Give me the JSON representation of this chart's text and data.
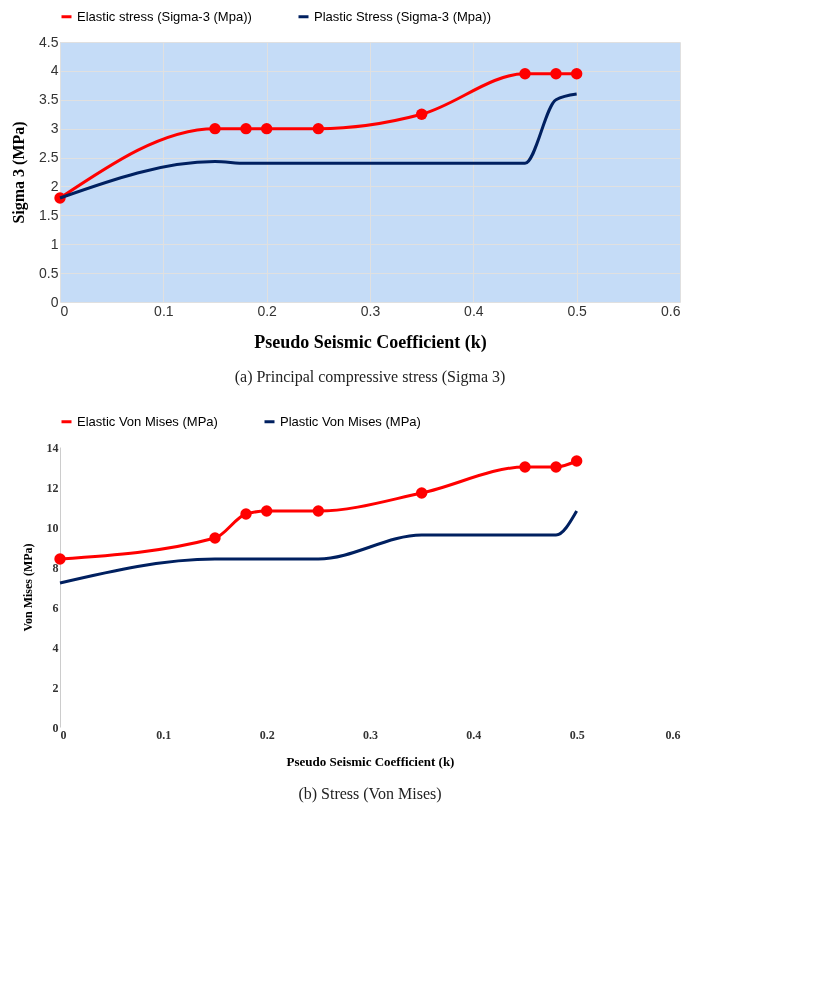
{
  "chart_data": [
    {
      "type": "line",
      "xlabel": "Pseudo Seismic Coefficient (k)",
      "ylabel": "Sigma 3 (MPa)",
      "xlim": [
        0,
        0.6
      ],
      "xticks": [
        0,
        0.1,
        0.2,
        0.3,
        0.4,
        0.5,
        0.6
      ],
      "ylim": [
        0,
        4.5
      ],
      "yticks": [
        0,
        0.5,
        1,
        1.5,
        2,
        2.5,
        3,
        3.5,
        4,
        4.5
      ],
      "grid": true,
      "legend": "top",
      "annotations": [
        "(a) Principal compressive stress (Sigma 3)"
      ],
      "x": [
        0,
        0.15,
        0.18,
        0.2,
        0.25,
        0.35,
        0.45,
        0.48,
        0.5
      ],
      "series": [
        {
          "name": "Elastic stress (Sigma-3 (Mpa))",
          "color": "#ff0000",
          "marker": "circle",
          "values": [
            1.8,
            3,
            3,
            3,
            3,
            3.25,
            3.95,
            3.95,
            3.95
          ]
        },
        {
          "name": "Plastic Stress (Sigma-3 (Mpa))",
          "color": "#002060",
          "marker": "none",
          "values": [
            1.8,
            2.43,
            2.4,
            2.4,
            2.4,
            2.4,
            2.4,
            3.5,
            3.6
          ]
        }
      ]
    },
    {
      "type": "line",
      "xlabel": "Pseudo Seismic Coefficient (k)",
      "ylabel": "Von Mises (MPa)",
      "xlim": [
        0,
        0.6
      ],
      "xticks": [
        0,
        0.1,
        0.2,
        0.3,
        0.4,
        0.5,
        0.6
      ],
      "ylim": [
        0,
        14
      ],
      "yticks": [
        0,
        2,
        4,
        6,
        8,
        10,
        12,
        14
      ],
      "legend": "top",
      "annotations": [
        "(b) Stress (Von Mises)"
      ],
      "x": [
        0,
        0.15,
        0.18,
        0.2,
        0.25,
        0.35,
        0.45,
        0.48,
        0.5
      ],
      "series": [
        {
          "name": "Elastic Von Mises (MPa)",
          "color": "#ff0000",
          "marker": "circle",
          "values": [
            8.4,
            9.45,
            10.65,
            10.8,
            10.8,
            11.7,
            13.0,
            13.0,
            13.3
          ]
        },
        {
          "name": "Plastic Von Mises (MPa)",
          "color": "#002060",
          "marker": "none",
          "values": [
            7.2,
            8.4,
            8.4,
            8.4,
            8.4,
            9.6,
            9.6,
            9.6,
            10.8
          ]
        }
      ]
    }
  ]
}
